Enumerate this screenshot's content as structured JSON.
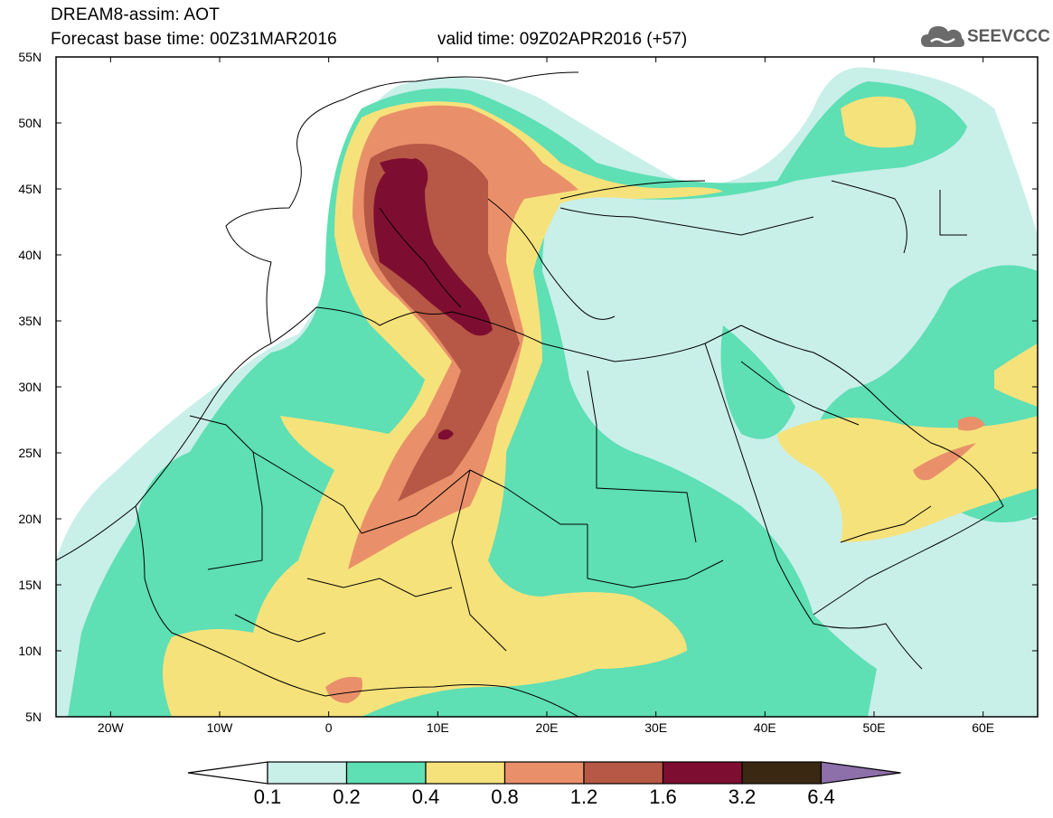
{
  "header": {
    "title_line1": "DREAM8-assim: AOT",
    "title_line2": "Forecast base time: 00Z31MAR2016",
    "valid_time": "valid time: 09Z02APR2016 (+57)"
  },
  "logo": {
    "text": "SEEVCCC",
    "icon": "cloud-logo-icon"
  },
  "map": {
    "lat_labels": [
      "55N",
      "50N",
      "45N",
      "40N",
      "35N",
      "30N",
      "25N",
      "20N",
      "15N",
      "10N",
      "5N"
    ],
    "lon_labels": [
      "20W",
      "10W",
      "0",
      "10E",
      "20E",
      "30E",
      "40E",
      "50E",
      "60E"
    ],
    "lon_range": [
      -25,
      65
    ],
    "lat_range": [
      5,
      55
    ],
    "grid": false
  },
  "legend": {
    "labels": [
      "0.1",
      "0.2",
      "0.4",
      "0.8",
      "1.2",
      "1.6",
      "3.2",
      "6.4"
    ],
    "colors": [
      "#ffffff",
      "#c9efe9",
      "#5edfb4",
      "#f6e27b",
      "#e9906a",
      "#b65845",
      "#7e0e31",
      "#3a2812",
      "#8d6faa"
    ]
  }
}
